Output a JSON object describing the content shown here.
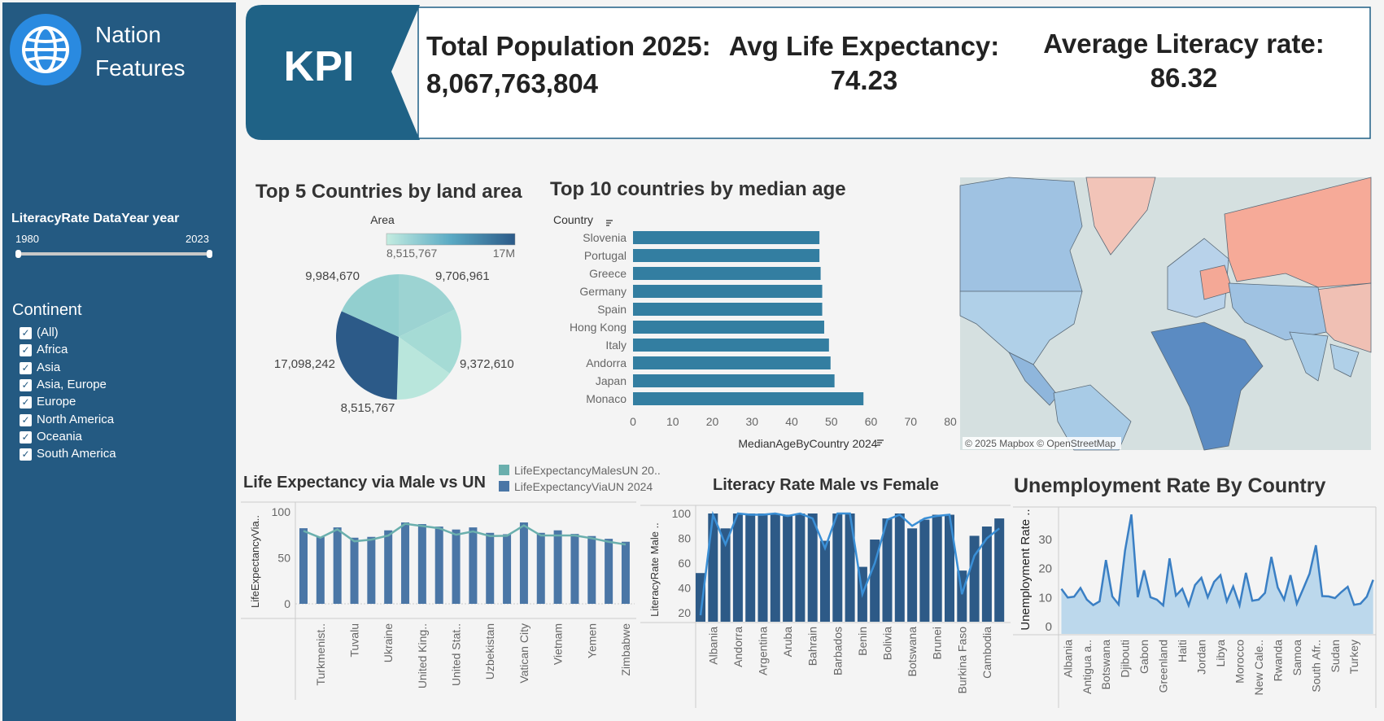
{
  "sidebar": {
    "title_line1": "Nation",
    "title_line2": "Features",
    "slider": {
      "label": "LiteracyRate DataYear year",
      "min_label": "1980",
      "max_label": "2023",
      "selected_range": [
        1980,
        2023
      ]
    },
    "continent_filter": {
      "label": "Continent",
      "items": [
        {
          "label": "(All)",
          "checked": true
        },
        {
          "label": "Africa",
          "checked": true
        },
        {
          "label": "Asia",
          "checked": true
        },
        {
          "label": "Asia, Europe",
          "checked": true
        },
        {
          "label": "Europe",
          "checked": true
        },
        {
          "label": "North America",
          "checked": true
        },
        {
          "label": "Oceania",
          "checked": true
        },
        {
          "label": "South America",
          "checked": true
        }
      ]
    }
  },
  "kpi": {
    "badge": "KPI",
    "total_population": {
      "label": "Total Population 2025:",
      "value": "8,067,763,804"
    },
    "life_expectancy": {
      "label": "Avg Life Expectancy:",
      "value": "74.23"
    },
    "literacy": {
      "label": "Average Literacy rate:",
      "value": "86.32"
    }
  },
  "map": {
    "attribution": "© 2025 Mapbox © OpenStreetMap"
  },
  "colors": {
    "sidebar": "#245a82",
    "kpi_banner": "#1f6286",
    "bar": "#337ea1",
    "pie_dark": "#2c5a88",
    "life_bar": "#4a76a6",
    "life_line": "#6aafad",
    "literacy_bar": "#2d5a87",
    "literacy_line": "#3a8fd6",
    "unemployment_line": "#3a7fc4",
    "unemployment_fill": "#bcd8ec"
  },
  "chart_data": [
    {
      "type": "pie",
      "title": "Top 5 Countries by land area",
      "legend": {
        "title": "Area",
        "min_label": "8,515,767",
        "max_label": "17M"
      },
      "slices": [
        {
          "label": "9,706,961",
          "value": 9706961,
          "color": "#9cd3d2"
        },
        {
          "label": "9,372,610",
          "value": 9372610,
          "color": "#a5dbd5"
        },
        {
          "label": "8,515,767",
          "value": 8515767,
          "color": "#b9e6dc"
        },
        {
          "label": "17,098,242",
          "value": 17098242,
          "color": "#2c5a88"
        },
        {
          "label": "9,984,670",
          "value": 9984670,
          "color": "#92cfcf"
        }
      ]
    },
    {
      "type": "bar",
      "orientation": "horizontal",
      "title": "Top 10 countries by median age",
      "ylabel": "Country",
      "xlabel": "MedianAgeByCountry 2024",
      "categories": [
        "Slovenia",
        "Portugal",
        "Greece",
        "Germany",
        "Spain",
        "Hong Kong",
        "Italy",
        "Andorra",
        "Japan",
        "Monaco"
      ],
      "values": [
        47.0,
        47.0,
        47.3,
        47.7,
        47.7,
        48.2,
        49.4,
        49.8,
        50.8,
        58.1
      ],
      "xlim": [
        0,
        80
      ],
      "xticks": [
        "0",
        "10",
        "20",
        "30",
        "40",
        "50",
        "60",
        "70",
        "80"
      ]
    },
    {
      "type": "bar",
      "title": "Life Expectancy via Male vs UN",
      "ylabel": "LifeExpectancyVia..",
      "categories": [
        "",
        "Turkmenist..",
        "",
        "Tuvalu",
        "",
        "Ukraine",
        "",
        "United King..",
        "",
        "United Stat..",
        "",
        "Uzbekistan",
        "",
        "Vatican City",
        "",
        "Vietnam",
        "",
        "Yemen",
        "",
        "Zimbabwe"
      ],
      "series": [
        {
          "name": "LifeExpectancyViaUN 2024",
          "type": "bar",
          "color": "#4a76a6",
          "values": [
            82.2,
            72.8,
            83.1,
            71.9,
            72.8,
            79.9,
            88.5,
            86.7,
            84.0,
            80.8,
            83.1,
            77.2,
            75.7,
            88.5,
            77.2,
            79.9,
            76.0,
            73.7,
            70.7,
            67.5
          ]
        },
        {
          "name": "LifeExpectancyMalesUN 20..",
          "type": "line",
          "color": "#6aafad",
          "values": [
            79.3,
            71.9,
            81.0,
            68.0,
            69.8,
            74.3,
            87.0,
            84.6,
            82.2,
            75.1,
            78.7,
            73.7,
            74.0,
            85.2,
            74.3,
            74.3,
            74.3,
            71.3,
            67.5,
            64.5
          ]
        }
      ],
      "ylim": [
        0,
        100
      ],
      "yticks": [
        "0",
        "50",
        "100"
      ],
      "legend": "top-right"
    },
    {
      "type": "bar",
      "title": "Literacy Rate Male vs Female",
      "ylabel": "LiteracyRate Male ..",
      "categories": [
        "",
        "Albania",
        "",
        "Andorra",
        "",
        "Argentina",
        "",
        "Aruba",
        "",
        "Bahrain",
        "",
        "Barbados",
        "",
        "Benin",
        "",
        "Bolivia",
        "",
        "Botswana",
        "",
        "Brunei",
        "",
        "Burkina Faso",
        "",
        "Cambodia",
        ""
      ],
      "series": [
        {
          "type": "bar",
          "color": "#2d5a87",
          "values": [
            52,
            100,
            88,
            100,
            100,
            100,
            100,
            99,
            100,
            100,
            78,
            100,
            100,
            57,
            79,
            96,
            100,
            88,
            95,
            99,
            99,
            54,
            82,
            89.5,
            96
          ]
        },
        {
          "type": "line",
          "color": "#3a8fd6",
          "values": [
            18,
            99,
            75,
            100,
            99,
            99,
            100,
            98,
            100,
            96,
            72,
            100,
            100,
            35,
            60,
            95,
            99,
            90,
            96,
            98,
            99,
            35,
            66,
            80,
            88
          ]
        }
      ],
      "ylim": [
        15,
        102
      ],
      "yticks": [
        "20",
        "40",
        "60",
        "80",
        "100"
      ]
    },
    {
      "type": "area",
      "title": "Unemployment Rate By Country",
      "ylabel": "Unemployment Rate ..",
      "categories": [
        "",
        "Albania",
        "",
        "",
        "Antigua a..",
        "",
        "",
        "Botswana",
        "",
        "",
        "Djibouti",
        "",
        "",
        "Gabon",
        "",
        "",
        "Greenland",
        "",
        "",
        "Haiti",
        "",
        "",
        "Jordan",
        "",
        "",
        "Libya",
        "",
        "",
        "Morocco",
        "",
        "",
        "New Cale..",
        "",
        "",
        "Rwanda",
        "",
        "",
        "Samoa",
        "",
        "",
        "South Afr..",
        "",
        "",
        "Sudan",
        "",
        "",
        "Turkey",
        "",
        "",
        ""
      ],
      "values": [
        13.0,
        10.0,
        10.3,
        13.3,
        9.3,
        7.4,
        8.7,
        22.9,
        10.4,
        7.6,
        26.1,
        38.6,
        10.1,
        19.4,
        10.1,
        9.3,
        7.3,
        23.5,
        10.7,
        13.0,
        7.3,
        14.3,
        16.8,
        10.1,
        15.4,
        17.7,
        8.7,
        13.8,
        7.3,
        18.5,
        8.9,
        9.3,
        11.6,
        24.0,
        13.5,
        9.3,
        17.7,
        7.9,
        13.0,
        18.2,
        28.0,
        10.5,
        10.4,
        9.8,
        11.9,
        13.7,
        7.5,
        7.9,
        10.3,
        16.1
      ],
      "ylim": [
        0,
        40
      ],
      "yticks": [
        "0",
        "10",
        "20",
        "30"
      ]
    }
  ]
}
